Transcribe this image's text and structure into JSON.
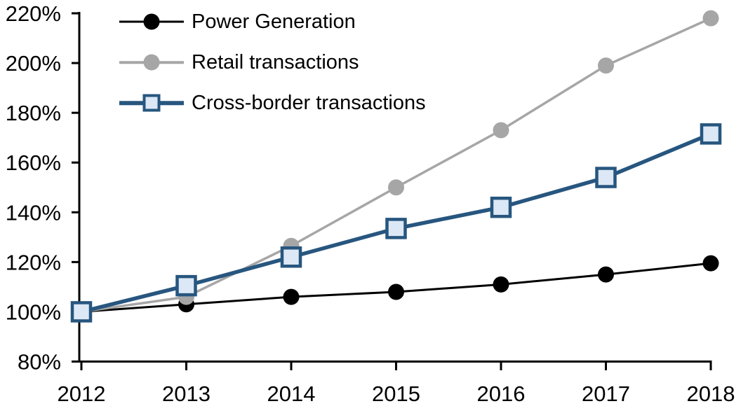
{
  "chart_data": {
    "type": "line",
    "title": "",
    "xlabel": "",
    "ylabel": "",
    "grid": false,
    "legend_position": "top-left-inside",
    "axis_color": "#000000",
    "x": [
      "2012",
      "2013",
      "2014",
      "2015",
      "2016",
      "2017",
      "2018"
    ],
    "ylim": [
      80,
      220
    ],
    "yticks": [
      80,
      100,
      120,
      140,
      160,
      180,
      200,
      220
    ],
    "ytick_suffix": "%",
    "series": [
      {
        "name": "Power Generation",
        "color": "#000000",
        "marker": "circle",
        "marker_fill": "#000000",
        "line_width": 3,
        "values": [
          100,
          103,
          106,
          108,
          111,
          115,
          119.5
        ]
      },
      {
        "name": "Retail transactions",
        "color": "#A6A6A6",
        "marker": "circle",
        "marker_fill": "#A6A6A6",
        "line_width": 3.5,
        "values": [
          100,
          106,
          126.5,
          150,
          173,
          199,
          218
        ]
      },
      {
        "name": "Cross-border transactions",
        "color": "#27567F",
        "marker": "square",
        "marker_fill": "#DCE8F5",
        "line_width": 5.5,
        "values": [
          100,
          110.5,
          122,
          133.5,
          142,
          154,
          171.5
        ]
      }
    ]
  }
}
